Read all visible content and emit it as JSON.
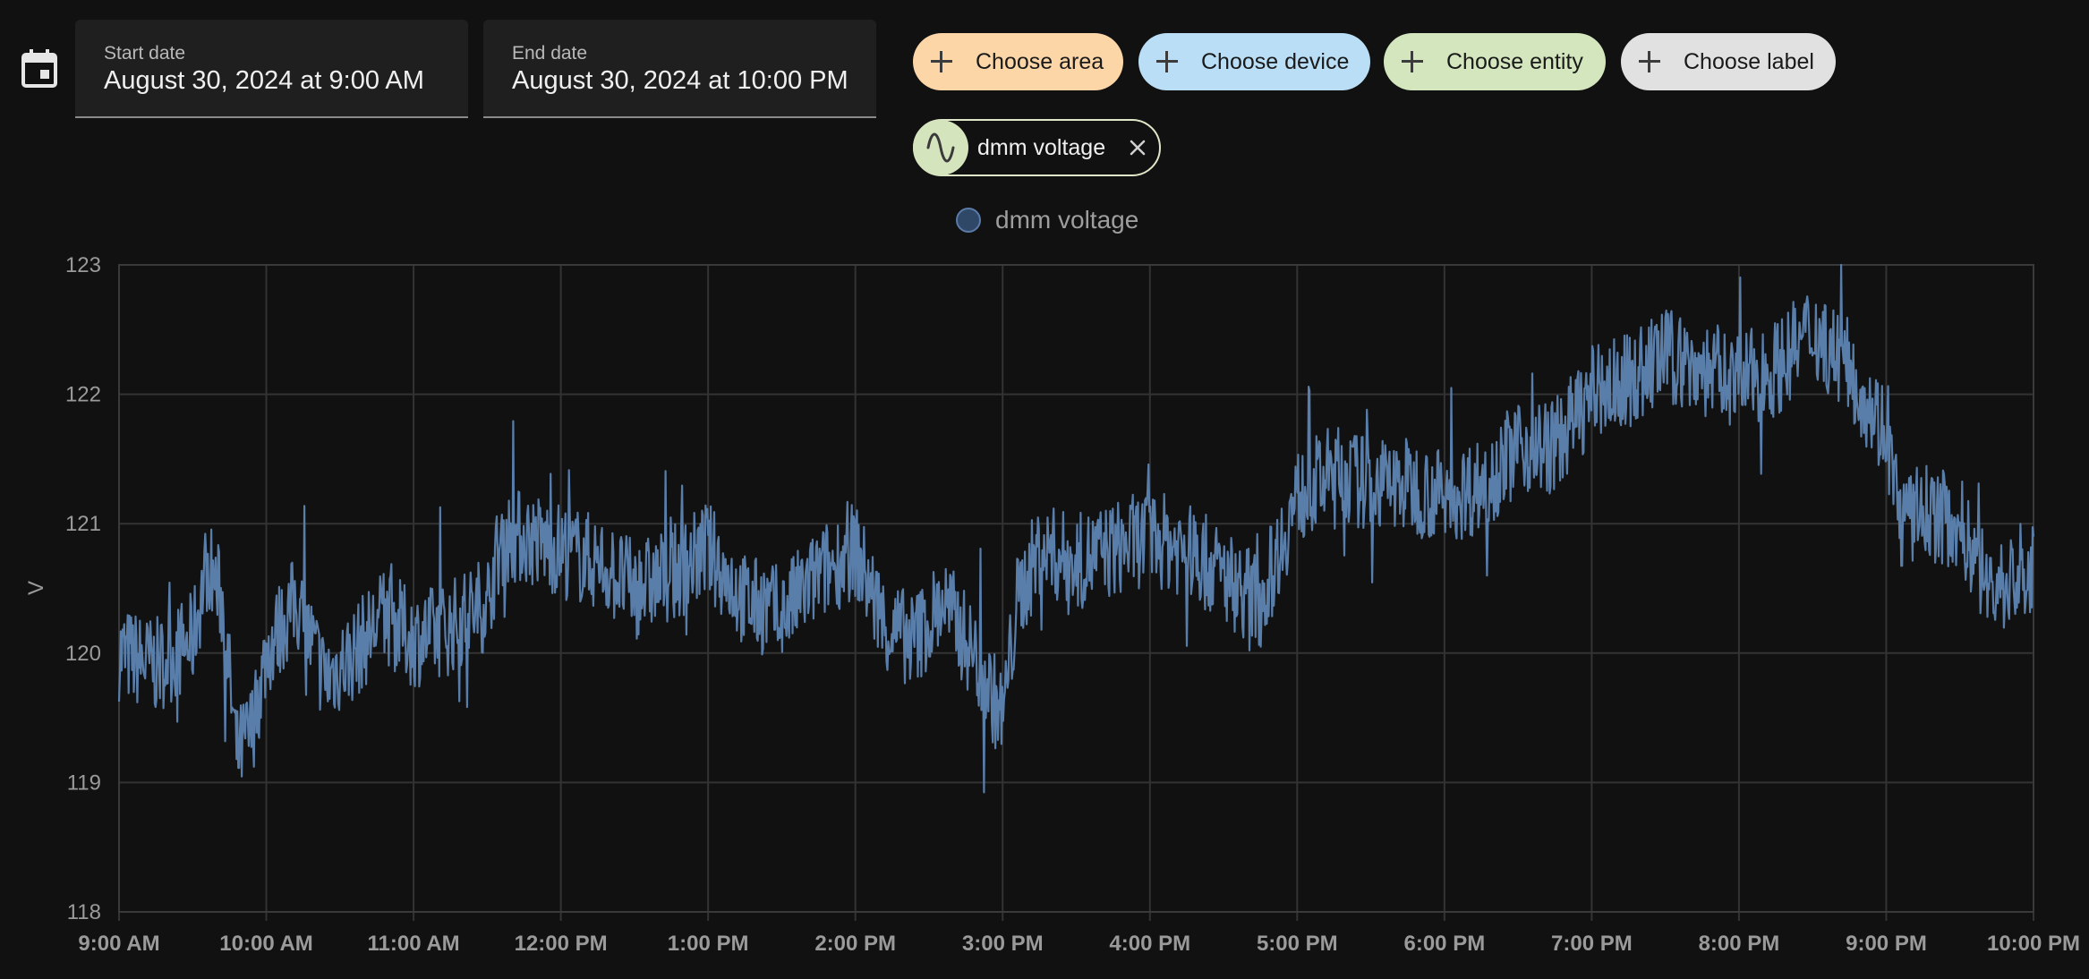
{
  "date_picker": {
    "start_label": "Start date",
    "start_value": "August 30, 2024 at 9:00 AM",
    "end_label": "End date",
    "end_value": "August 30, 2024 at 10:00 PM"
  },
  "target_chips": [
    {
      "label": "Choose area",
      "color": "#fdd6a8"
    },
    {
      "label": "Choose device",
      "color": "#b9def5"
    },
    {
      "label": "Choose entity",
      "color": "#d3e6bd"
    },
    {
      "label": "Choose label",
      "color": "#e1e1e1"
    }
  ],
  "selected_entity": {
    "name": "dmm voltage",
    "icon": "sine-wave-icon"
  },
  "colors": {
    "series": "#5a7eaa",
    "background": "#111111",
    "grid": "#333333"
  },
  "chart_data": {
    "type": "line",
    "title": "",
    "legend": [
      {
        "name": "dmm voltage",
        "placement": "top-center"
      }
    ],
    "ylabel": "V",
    "xlabel": "",
    "ylim": [
      118,
      123
    ],
    "yticks": [
      "118",
      "119",
      "120",
      "121",
      "122",
      "123"
    ],
    "xticks": [
      "9:00 AM",
      "10:00 AM",
      "11:00 AM",
      "12:00 PM",
      "1:00 PM",
      "2:00 PM",
      "3:00 PM",
      "4:00 PM",
      "5:00 PM",
      "6:00 PM",
      "7:00 PM",
      "8:00 PM",
      "9:00 PM",
      "10:00 PM"
    ],
    "grid": true,
    "series": [
      {
        "name": "dmm voltage",
        "x_hours": [
          9.0,
          9.25,
          9.5,
          9.6,
          9.7,
          9.8,
          9.9,
          10.0,
          10.2,
          10.4,
          10.6,
          10.8,
          11.0,
          11.25,
          11.5,
          11.6,
          11.75,
          12.0,
          12.25,
          12.5,
          12.75,
          13.0,
          13.25,
          13.5,
          13.75,
          14.0,
          14.2,
          14.4,
          14.6,
          14.8,
          15.0,
          15.1,
          15.25,
          15.5,
          15.75,
          16.0,
          16.25,
          16.5,
          16.75,
          17.0,
          17.25,
          17.5,
          17.75,
          18.0,
          18.25,
          18.5,
          18.75,
          19.0,
          19.25,
          19.5,
          19.75,
          20.0,
          20.25,
          20.5,
          20.75,
          21.0,
          21.1,
          21.25,
          21.5,
          21.7,
          22.0
        ],
        "values": [
          120.0,
          119.9,
          120.1,
          120.7,
          120.4,
          119.2,
          119.4,
          120.0,
          120.4,
          119.8,
          120.0,
          120.3,
          120.1,
          120.2,
          120.4,
          120.9,
          120.9,
          120.8,
          120.7,
          120.5,
          120.6,
          120.8,
          120.4,
          120.3,
          120.6,
          120.8,
          120.2,
          120.1,
          120.4,
          120.0,
          119.5,
          120.4,
          120.8,
          120.7,
          120.8,
          120.9,
          120.8,
          120.6,
          120.4,
          121.2,
          121.4,
          121.3,
          121.3,
          121.2,
          121.3,
          121.6,
          121.6,
          122.0,
          122.1,
          122.3,
          122.2,
          122.1,
          122.2,
          122.5,
          122.2,
          121.7,
          121.0,
          121.1,
          121.0,
          120.5,
          120.6
        ]
      }
    ]
  }
}
